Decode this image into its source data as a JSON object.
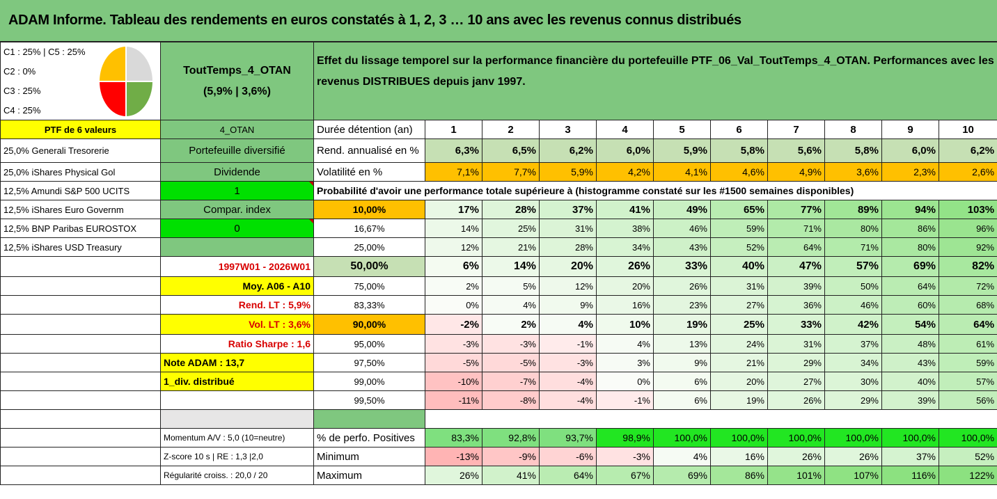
{
  "title": "ADAM Informe. Tableau des rendements en euros constatés à 1, 2, 3 … 10 ans avec les revenus connus distribués",
  "alloc": {
    "line1": "C1 : 25% | C5 : 25%",
    "line2": "C2 : 0%",
    "line3": "C3 : 25%",
    "line4": "C4 : 25%"
  },
  "pie_colors": {
    "c1": "#ffc000",
    "c2": "#d9d9d9",
    "c3": "#ff0000",
    "c4": "#70ad47"
  },
  "portfolio": {
    "name": "ToutTemps_4_OTAN",
    "stats": "(5,9% | 3,6%)",
    "code": "4_OTAN",
    "type": "Portefeuille diversifié",
    "dividend_label": "Dividende",
    "dividend_value": "1",
    "compar_label": "Compar. index",
    "compar_value": "0",
    "period": "1997W01 - 2026W01",
    "moy": "Moy. A06 - A10",
    "rend_lt": "Rend. LT : 5,9%",
    "vol_lt": "Vol. LT : 3,6%",
    "sharpe": "Ratio Sharpe : 1,6",
    "note": "Note ADAM : 13,7",
    "div_distrib": "1_div. distribué",
    "momentum": "Momentum A/V : 5,0 (10=neutre)",
    "zscore": "Z-score 10 s | RE : 1,3 |2,0",
    "regularite": "Régularité croiss. : 20,0 / 20"
  },
  "description": "Effet du lissage temporel sur la performance financière du portefeuille PTF_06_Val_ToutTemps_4_OTAN. Performances avec les revenus DISTRIBUES depuis janv 1997.",
  "ptf_header": "PTF de 6 valeurs",
  "holdings": [
    "25,0% Generali Tresorerie",
    "25,0% iShares Physical Gol",
    "12,5% Amundi S&P 500 UCITS",
    "12,5% iShares Euro Governm",
    "12,5% BNP Paribas EUROSTOX",
    "12,5% iShares USD Treasury"
  ],
  "duree_label": "Durée détention (an)",
  "years": [
    "1",
    "2",
    "3",
    "4",
    "5",
    "6",
    "7",
    "8",
    "9",
    "10"
  ],
  "rend_label": "Rend. annualisé en %",
  "rend": [
    "6,3%",
    "6,5%",
    "6,2%",
    "6,0%",
    "5,9%",
    "5,8%",
    "5,6%",
    "5,8%",
    "6,0%",
    "6,2%"
  ],
  "vol_label": "Volatilité en %",
  "vol": [
    "7,1%",
    "7,7%",
    "5,9%",
    "4,2%",
    "4,1%",
    "4,6%",
    "4,9%",
    "3,6%",
    "2,3%",
    "2,6%"
  ],
  "proba_label": "Probabilité d'avoir une performance totale supérieure à (histogramme constaté sur les #1500 semaines disponibles)",
  "quantiles": [
    {
      "q": "10,00%",
      "v": [
        "17%",
        "28%",
        "37%",
        "41%",
        "49%",
        "65%",
        "77%",
        "89%",
        "94%",
        "103%"
      ]
    },
    {
      "q": "16,67%",
      "v": [
        "14%",
        "25%",
        "31%",
        "38%",
        "46%",
        "59%",
        "71%",
        "80%",
        "86%",
        "96%"
      ]
    },
    {
      "q": "25,00%",
      "v": [
        "12%",
        "21%",
        "28%",
        "34%",
        "43%",
        "52%",
        "64%",
        "71%",
        "80%",
        "92%"
      ]
    },
    {
      "q": "50,00%",
      "v": [
        "6%",
        "14%",
        "20%",
        "26%",
        "33%",
        "40%",
        "47%",
        "57%",
        "69%",
        "82%"
      ]
    },
    {
      "q": "75,00%",
      "v": [
        "2%",
        "5%",
        "12%",
        "20%",
        "26%",
        "31%",
        "39%",
        "50%",
        "64%",
        "72%"
      ]
    },
    {
      "q": "83,33%",
      "v": [
        "0%",
        "4%",
        "9%",
        "16%",
        "23%",
        "27%",
        "36%",
        "46%",
        "60%",
        "68%"
      ]
    },
    {
      "q": "90,00%",
      "v": [
        "-2%",
        "2%",
        "4%",
        "10%",
        "19%",
        "25%",
        "33%",
        "42%",
        "54%",
        "64%"
      ]
    },
    {
      "q": "95,00%",
      "v": [
        "-3%",
        "-3%",
        "-1%",
        "4%",
        "13%",
        "24%",
        "31%",
        "37%",
        "48%",
        "61%"
      ]
    },
    {
      "q": "97,50%",
      "v": [
        "-5%",
        "-5%",
        "-3%",
        "3%",
        "9%",
        "21%",
        "29%",
        "34%",
        "43%",
        "59%"
      ]
    },
    {
      "q": "99,00%",
      "v": [
        "-10%",
        "-7%",
        "-4%",
        "0%",
        "6%",
        "20%",
        "27%",
        "30%",
        "40%",
        "57%"
      ]
    },
    {
      "q": "99,50%",
      "v": [
        "-11%",
        "-8%",
        "-4%",
        "-1%",
        "6%",
        "19%",
        "26%",
        "29%",
        "39%",
        "56%"
      ]
    }
  ],
  "pos_label": "% de perfo. Positives",
  "pos": [
    "83,3%",
    "92,8%",
    "93,7%",
    "98,9%",
    "100,0%",
    "100,0%",
    "100,0%",
    "100,0%",
    "100,0%",
    "100,0%"
  ],
  "min_label": "Minimum",
  "min": [
    "-13%",
    "-9%",
    "-6%",
    "-3%",
    "4%",
    "16%",
    "26%",
    "26%",
    "37%",
    "52%"
  ],
  "max_label": "Maximum",
  "max": [
    "26%",
    "41%",
    "64%",
    "67%",
    "69%",
    "86%",
    "101%",
    "107%",
    "116%",
    "122%"
  ]
}
